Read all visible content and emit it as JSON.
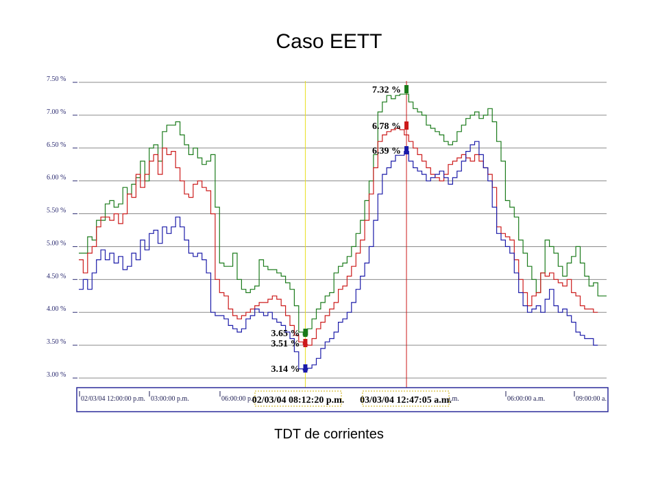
{
  "page": {
    "title": "Caso EETT",
    "caption": "TDT de corrientes"
  },
  "chart_data": {
    "type": "line",
    "title": "Caso EETT",
    "xlabel": "",
    "ylabel": "",
    "ylim": [
      3.0,
      7.5
    ],
    "y_ticks": [
      "3.00 %",
      "3.50 %",
      "4.00 %",
      "4.50 %",
      "5.00 %",
      "5.50 %",
      "6.00 %",
      "6.50 %",
      "7.00 %",
      "7.50 %"
    ],
    "y_tick_values": [
      3.0,
      3.5,
      4.0,
      4.5,
      5.0,
      5.5,
      6.0,
      6.5,
      7.0,
      7.5
    ],
    "x_ticks": [
      "02/03/04 12:00:00 p.m.",
      "03:00:00 p.m.",
      "06:00:00 p.m",
      "00 a.m.",
      "06:00:00 a.m.",
      "09:00:00 a."
    ],
    "grid": true,
    "step": true,
    "series": [
      {
        "color": "#1a7a1a",
        "values": [
          4.9,
          4.9,
          5.15,
          5.1,
          5.4,
          5.4,
          5.65,
          5.7,
          5.6,
          5.65,
          5.9,
          5.8,
          5.95,
          6.05,
          6.3,
          6.0,
          6.5,
          6.55,
          6.3,
          6.75,
          6.85,
          6.85,
          6.9,
          6.7,
          6.55,
          6.4,
          6.5,
          6.35,
          6.25,
          6.3,
          6.4,
          5.6,
          4.75,
          4.7,
          4.7,
          4.9,
          4.5,
          4.35,
          4.3,
          4.35,
          4.4,
          4.8,
          4.7,
          4.65,
          4.65,
          4.6,
          4.55,
          4.45,
          4.35,
          4.1,
          3.7,
          3.65,
          3.75,
          3.9,
          4.05,
          4.15,
          4.25,
          4.3,
          4.6,
          4.7,
          4.75,
          4.85,
          5.0,
          5.2,
          5.4,
          5.7,
          6.0,
          6.4,
          7.05,
          7.2,
          7.3,
          7.25,
          7.3,
          7.32,
          7.32,
          7.2,
          7.1,
          7.05,
          7.0,
          6.85,
          6.8,
          6.75,
          6.7,
          6.6,
          6.55,
          6.6,
          6.75,
          6.85,
          6.95,
          7.0,
          7.05,
          6.95,
          7.0,
          7.1,
          6.9,
          6.6,
          6.3,
          5.7,
          5.6,
          5.45,
          5.1,
          4.9,
          4.7,
          4.5,
          4.3,
          4.6,
          5.1,
          5.0,
          4.9,
          4.7,
          4.55,
          4.75,
          4.85,
          5.0,
          4.75,
          4.55,
          4.4,
          4.45,
          4.25,
          4.25
        ]
      },
      {
        "color": "#cc1a1a",
        "values": [
          4.8,
          4.6,
          4.9,
          5.0,
          5.3,
          5.45,
          5.45,
          5.4,
          5.5,
          5.35,
          5.5,
          5.8,
          5.75,
          6.1,
          5.9,
          6.1,
          6.3,
          6.4,
          6.1,
          6.5,
          6.4,
          6.45,
          6.2,
          6.0,
          5.8,
          5.75,
          5.95,
          6.0,
          5.9,
          5.85,
          5.5,
          4.5,
          4.3,
          4.25,
          4.05,
          3.95,
          3.9,
          3.95,
          4.0,
          4.05,
          4.1,
          4.15,
          4.15,
          4.2,
          4.25,
          4.2,
          4.1,
          3.95,
          3.8,
          3.65,
          3.55,
          3.51,
          3.5,
          3.6,
          3.75,
          3.85,
          3.95,
          4.05,
          4.15,
          4.35,
          4.4,
          4.55,
          4.7,
          4.9,
          5.1,
          5.4,
          5.8,
          6.2,
          6.6,
          6.7,
          6.75,
          6.78,
          6.8,
          6.78,
          6.7,
          6.6,
          6.5,
          6.4,
          6.3,
          6.2,
          6.1,
          6.05,
          6.0,
          6.1,
          6.25,
          6.3,
          6.35,
          6.4,
          6.35,
          6.3,
          6.4,
          6.3,
          6.2,
          6.1,
          5.9,
          5.3,
          5.2,
          5.15,
          5.1,
          4.8,
          4.5,
          4.3,
          4.1,
          4.25,
          4.3,
          4.6,
          4.55,
          4.6,
          4.5,
          4.45,
          4.4,
          4.5,
          4.3,
          4.25,
          4.1,
          4.05,
          4.05,
          4.0
        ]
      },
      {
        "color": "#1a1aa8",
        "values": [
          4.35,
          4.5,
          4.35,
          4.6,
          4.8,
          4.95,
          4.8,
          4.9,
          4.75,
          4.85,
          4.65,
          4.7,
          4.9,
          4.8,
          5.1,
          4.95,
          5.2,
          5.25,
          5.05,
          5.3,
          5.2,
          5.3,
          5.45,
          5.3,
          5.1,
          4.9,
          4.85,
          4.9,
          4.8,
          4.6,
          4.0,
          3.95,
          3.95,
          3.9,
          3.8,
          3.75,
          3.7,
          3.75,
          3.9,
          3.95,
          4.05,
          4.0,
          3.95,
          4.0,
          3.9,
          3.85,
          3.8,
          3.7,
          3.6,
          3.4,
          3.14,
          3.12,
          3.15,
          3.2,
          3.3,
          3.45,
          3.55,
          3.6,
          3.7,
          3.85,
          3.9,
          4.0,
          4.15,
          4.35,
          4.55,
          4.75,
          5.0,
          5.4,
          5.8,
          6.1,
          6.2,
          6.3,
          6.39,
          6.39,
          6.45,
          6.3,
          6.2,
          6.15,
          6.1,
          6.0,
          6.05,
          6.1,
          6.15,
          6.05,
          5.95,
          6.05,
          6.15,
          6.3,
          6.45,
          6.55,
          6.6,
          6.4,
          6.2,
          6.0,
          5.6,
          5.2,
          5.1,
          5.0,
          4.9,
          4.6,
          4.3,
          4.1,
          4.0,
          4.05,
          4.1,
          4.0,
          4.2,
          4.35,
          4.1,
          4.0,
          4.05,
          3.95,
          3.85,
          3.7,
          3.65,
          3.6,
          3.6,
          3.5
        ]
      }
    ],
    "cursors": [
      {
        "color": "#e8e020",
        "label": "02/03/04 08:12:20 p.m.",
        "values": [
          3.65,
          3.51,
          3.14
        ],
        "value_labels": [
          "3.65 %",
          "3.51 %",
          "3.14 %"
        ]
      },
      {
        "color": "#cc1a1a",
        "label": "03/03/04 12:47:05 a.m.",
        "values": [
          7.32,
          6.78,
          6.39
        ],
        "value_labels": [
          "7.32 %",
          "6.78 %",
          "6.39 %"
        ]
      }
    ]
  }
}
